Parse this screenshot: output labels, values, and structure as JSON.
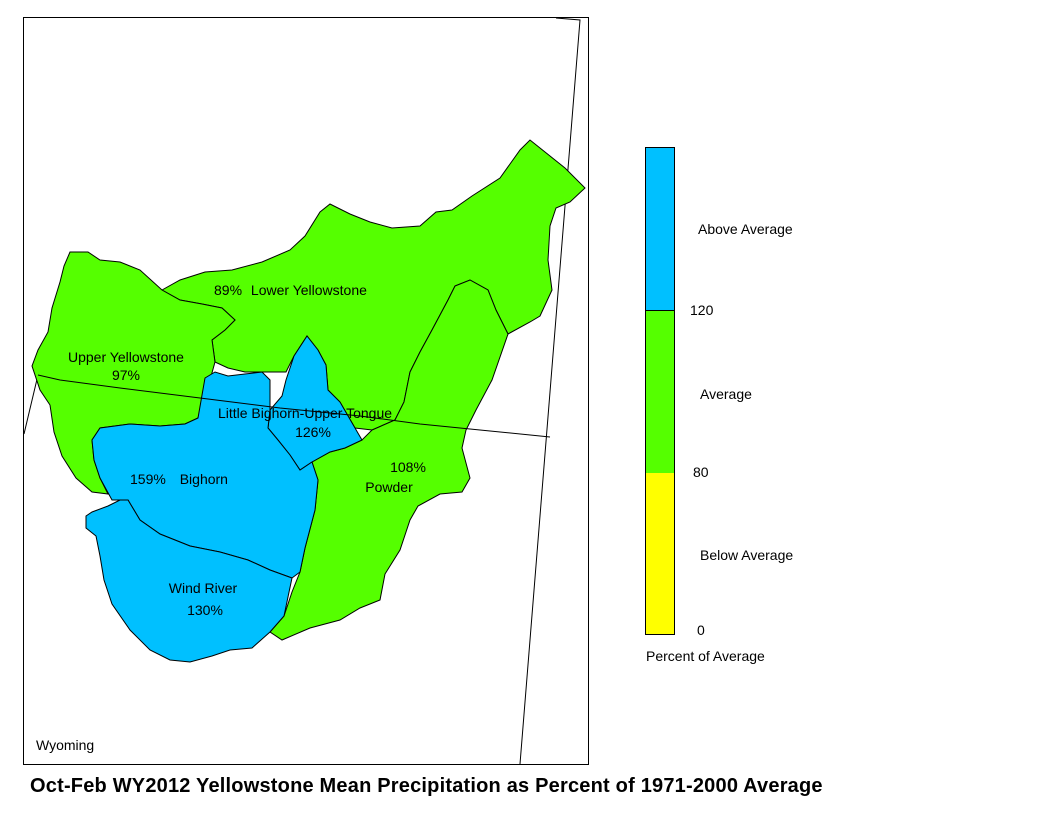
{
  "map": {
    "state_label": "Wyoming",
    "basins": [
      {
        "id": "lower-yellowstone",
        "name": "Lower Yellowstone",
        "percent": "89%",
        "category": "average"
      },
      {
        "id": "upper-yellowstone",
        "name": "Upper Yellowstone",
        "percent": "97%",
        "category": "average"
      },
      {
        "id": "little-bighorn-upper-tongue",
        "name": "Little Bighorn-Upper Tongue",
        "percent": "126%",
        "category": "above"
      },
      {
        "id": "bighorn",
        "name": "Bighorn",
        "percent": "159%",
        "category": "above"
      },
      {
        "id": "powder",
        "name": "Powder",
        "percent": "108%",
        "category": "average"
      },
      {
        "id": "wind-river",
        "name": "Wind River",
        "percent": "130%",
        "category": "above"
      }
    ]
  },
  "legend": {
    "title": "Percent of Average",
    "categories": [
      {
        "label": "Above Average",
        "color": "#00c0ff"
      },
      {
        "label": "Average",
        "color": "#55ff00"
      },
      {
        "label": "Below Average",
        "color": "#ffff00"
      }
    ],
    "ticks": [
      "120",
      "80",
      "0"
    ]
  },
  "caption": "Oct-Feb WY2012 Yellowstone Mean Precipitation as Percent of 1971-2000 Average"
}
